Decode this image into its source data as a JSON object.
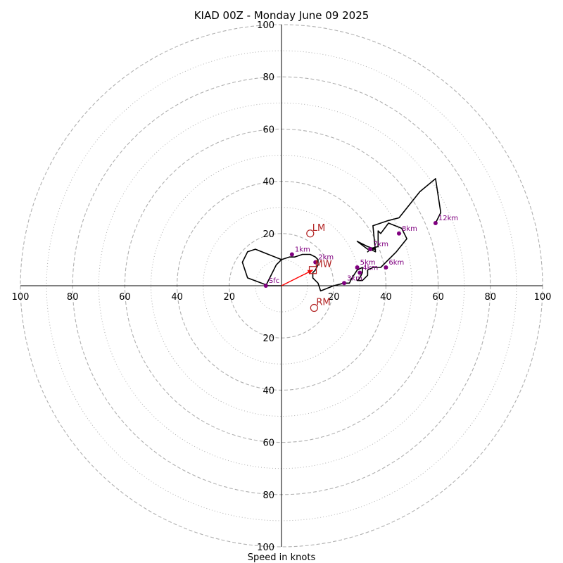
{
  "chart_data": {
    "type": "hodograph",
    "title": "KIAD 00Z - Monday June 09 2025",
    "xlabel": "Speed in knots",
    "unit": "knots",
    "range": [
      -100,
      100
    ],
    "rings_major": [
      20,
      40,
      60,
      80,
      100
    ],
    "rings_minor": [
      10,
      30,
      50,
      70,
      90
    ],
    "tick_labels": {
      "left": [
        "100",
        "80",
        "60",
        "40",
        "20"
      ],
      "right": [
        "20",
        "40",
        "60",
        "80",
        "100"
      ],
      "top": [
        "100",
        "80",
        "60",
        "40",
        "20"
      ],
      "bottom": [
        "20",
        "40",
        "60",
        "80",
        "100"
      ]
    },
    "grid": true,
    "colors": {
      "trace": "#000000",
      "height_markers": "#800080",
      "storm_motion": "#b22222",
      "vector": "#ff0000",
      "grid": "#b0b0b0"
    },
    "trace": {
      "u": [
        -6,
        -2,
        0,
        3,
        5,
        8,
        9,
        11,
        13,
        14,
        14,
        13,
        12,
        12,
        12,
        14,
        15,
        20,
        24,
        26,
        27,
        29,
        31,
        31,
        30,
        29,
        31,
        33,
        33,
        35,
        38,
        40,
        44,
        48,
        46,
        41,
        38,
        37,
        37,
        33,
        29,
        33,
        36,
        34,
        33,
        34,
        36,
        35,
        41,
        45,
        53,
        59,
        61,
        59
      ],
      "v": [
        0,
        8,
        10,
        11,
        11,
        12,
        12,
        12,
        11,
        10,
        8,
        6,
        5,
        4,
        3,
        1,
        -2,
        0,
        1,
        1,
        3,
        6,
        7,
        5,
        3,
        2,
        2,
        4,
        6,
        7,
        7,
        9,
        13,
        18,
        22,
        24,
        20,
        21,
        15,
        14,
        17,
        15,
        14,
        14,
        13,
        14,
        13,
        23,
        25,
        26,
        36,
        41,
        28,
        24
      ]
    },
    "trace_extra": {
      "u": [
        0,
        -10,
        -13,
        -15,
        -13,
        -5,
        -2,
        0
      ],
      "v": [
        10,
        14,
        13,
        9,
        3,
        0,
        0,
        0
      ]
    },
    "height_markers": [
      {
        "label": "Sfc",
        "u": -6,
        "v": 0
      },
      {
        "label": "1km",
        "u": 4,
        "v": 12
      },
      {
        "label": "2km",
        "u": 13,
        "v": 9
      },
      {
        "label": "3km",
        "u": 24,
        "v": 1
      },
      {
        "label": "4km",
        "u": 30,
        "v": 5
      },
      {
        "label": "5km",
        "u": 29,
        "v": 7
      },
      {
        "label": "6km",
        "u": 40,
        "v": 7
      },
      {
        "label": "7km",
        "u": 34,
        "v": 14
      },
      {
        "label": "8km",
        "u": 45,
        "v": 20
      },
      {
        "label": "12km",
        "u": 59,
        "v": 24
      }
    ],
    "storm_motion": [
      {
        "label": "LM",
        "u": 11,
        "v": 20,
        "marker": "circle"
      },
      {
        "label": "RM",
        "u": 12.5,
        "v": -8.5,
        "marker": "circle"
      },
      {
        "label": "MW",
        "u": 12,
        "v": 6,
        "marker": "square"
      }
    ],
    "vector": {
      "from_u": 0,
      "from_v": 0,
      "to_u": 12,
      "to_v": 6
    }
  }
}
